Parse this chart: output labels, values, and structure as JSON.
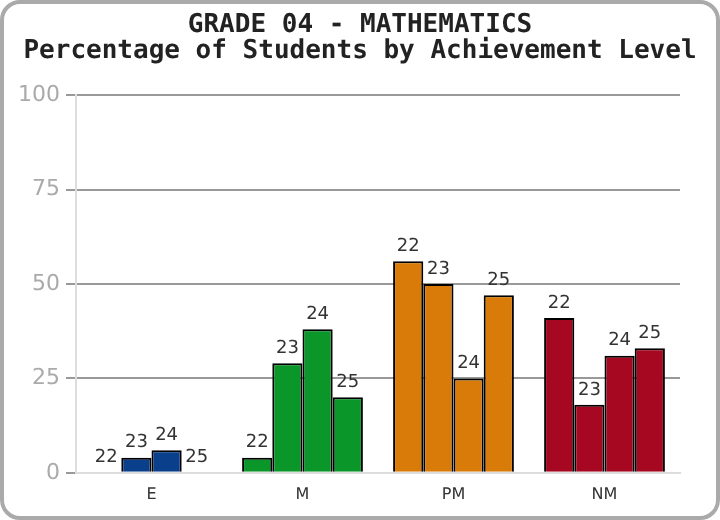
{
  "chart_data": {
    "type": "bar",
    "title": "GRADE 04 - MATHEMATICS",
    "subtitle": "Percentage of Students by Achievement Level",
    "categories": [
      "E",
      "M",
      "PM",
      "NM"
    ],
    "series": [
      {
        "name": "22",
        "colors": [
          "#0a3f8c",
          "#0a9628",
          "#d97b08",
          "#a50820"
        ],
        "values": [
          0,
          4,
          56,
          41
        ]
      },
      {
        "name": "23",
        "colors": [
          "#0a3f8c",
          "#0a9628",
          "#d97b08",
          "#a50820"
        ],
        "values": [
          4,
          29,
          50,
          18
        ]
      },
      {
        "name": "24",
        "colors": [
          "#0a3f8c",
          "#0a9628",
          "#d97b08",
          "#a50820"
        ],
        "values": [
          6,
          38,
          25,
          31
        ]
      },
      {
        "name": "25",
        "colors": [
          "#0a3f8c",
          "#0a9628",
          "#d97b08",
          "#a50820"
        ],
        "values": [
          0,
          20,
          47,
          33
        ]
      }
    ],
    "ylim": [
      0,
      100
    ],
    "yticks": [
      0,
      25,
      50,
      75,
      100
    ],
    "grid": "y",
    "legend": false
  }
}
